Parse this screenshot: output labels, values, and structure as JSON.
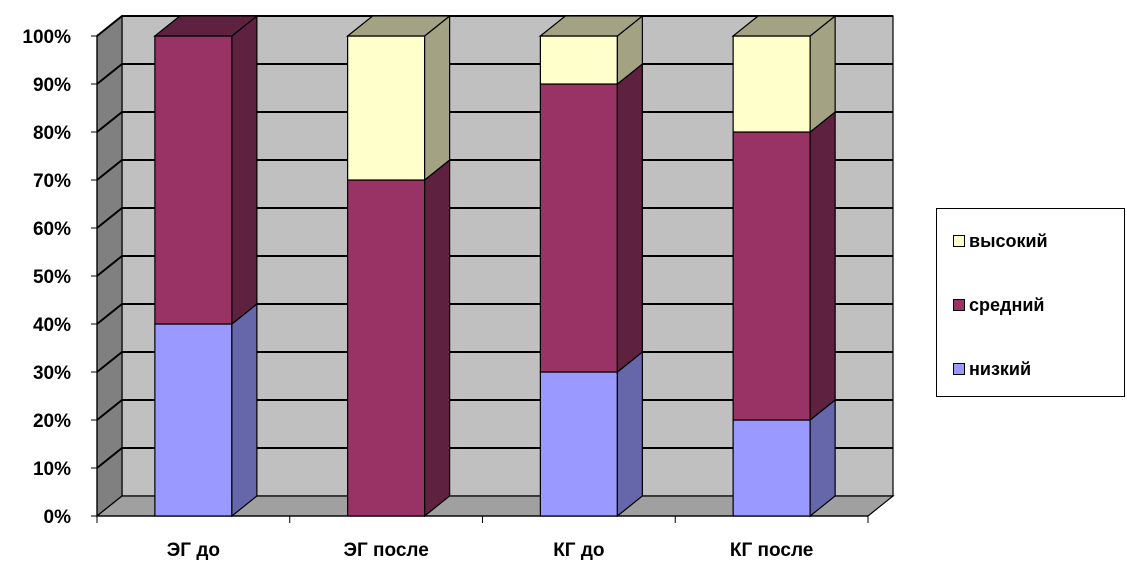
{
  "chart_data": {
    "type": "bar",
    "stacked": true,
    "percent": true,
    "three_d": true,
    "categories": [
      "ЭГ до",
      "ЭГ после",
      "КГ до",
      "КГ после"
    ],
    "series": [
      {
        "name": "низкий",
        "values": [
          40,
          0,
          30,
          20
        ],
        "color": "#9999FF",
        "side_color": "#6666AA"
      },
      {
        "name": "средний",
        "values": [
          60,
          70,
          60,
          60
        ],
        "color": "#993366",
        "side_color": "#5E2140"
      },
      {
        "name": "высокий",
        "values": [
          0,
          30,
          10,
          20
        ],
        "color": "#FFFFCC",
        "side_color": "#A3A383"
      }
    ],
    "y_ticks": [
      "0%",
      "10%",
      "20%",
      "30%",
      "40%",
      "50%",
      "60%",
      "70%",
      "80%",
      "90%",
      "100%"
    ],
    "ylim": [
      0,
      100
    ],
    "grid": true,
    "wall_color": "#C0C0C0",
    "legend_position": "right",
    "legend_order": [
      "высокий",
      "средний",
      "низкий"
    ]
  }
}
